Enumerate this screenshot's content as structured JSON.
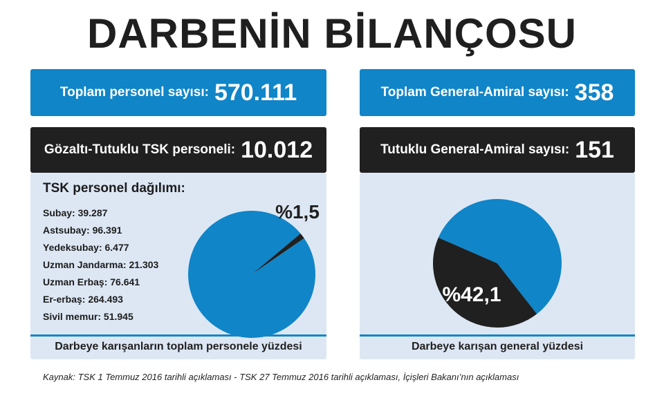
{
  "title": "DARBENİN BİLANÇOSU",
  "left": {
    "total": {
      "label": "Toplam personel sayısı:",
      "value": "570.111"
    },
    "detained": {
      "label": "Gözaltı-Tutuklu TSK personeli:",
      "value": "10.012"
    },
    "distribution_title": "TSK personel dağılımı:",
    "distribution": [
      "Subay: 39.287",
      "Astsubay: 96.391",
      "Yedeksubay: 6.477",
      "Uzman Jandarma: 21.303",
      "Uzman Erbaş: 76.641",
      "Er-erbaş: 264.493",
      "Sivil memur: 51.945"
    ],
    "caption": "Darbeye karışanların toplam personele yüzdesi"
  },
  "right": {
    "total": {
      "label": "Toplam General-Amiral sayısı:",
      "value": "358"
    },
    "detained": {
      "label": "Tutuklu General-Amiral sayısı:",
      "value": "151"
    },
    "caption": "Darbeye karışan general yüzdesi"
  },
  "colors": {
    "blue": "#1085c8",
    "dark": "#202020",
    "panel_bg": "#dde7f4"
  },
  "chart_data": [
    {
      "type": "pie",
      "title": "",
      "slices": [
        {
          "label": "%1,5",
          "value": 1.5,
          "color": "#202020"
        },
        {
          "label": "",
          "value": 98.5,
          "color": "#1085c8"
        }
      ]
    },
    {
      "type": "pie",
      "title": "",
      "slices": [
        {
          "label": "%42,1",
          "value": 42.1,
          "color": "#202020"
        },
        {
          "label": "",
          "value": 57.9,
          "color": "#1085c8"
        }
      ]
    }
  ],
  "source": "Kaynak: TSK 1 Temmuz 2016 tarihli açıklaması - TSK 27 Temmuz 2016 tarihli açıklaması, İçişleri Bakanı’nın açıklaması"
}
